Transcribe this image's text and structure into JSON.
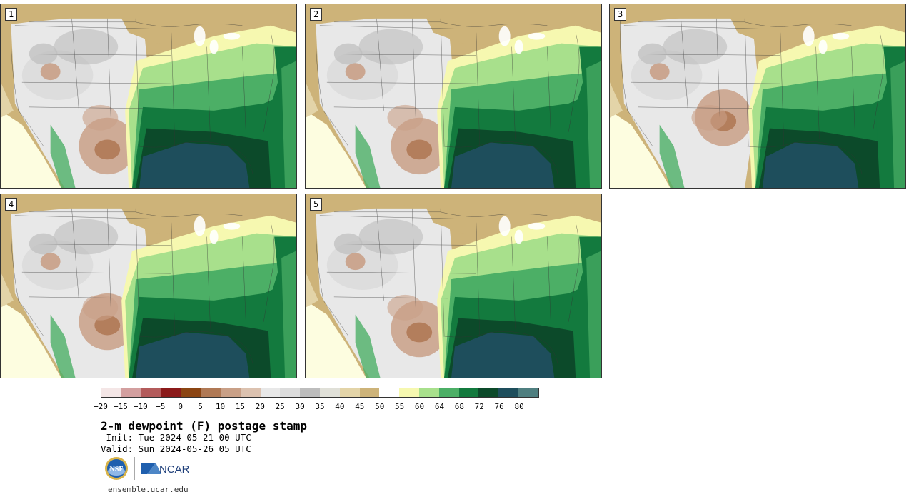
{
  "panels": [
    {
      "id": "panel-1",
      "label": "1"
    },
    {
      "id": "panel-2",
      "label": "2"
    },
    {
      "id": "panel-3",
      "label": "3"
    },
    {
      "id": "panel-4",
      "label": "4"
    },
    {
      "id": "panel-5",
      "label": "5"
    }
  ],
  "legend": {
    "colors": [
      "#f4e6e6",
      "#d39f9f",
      "#b35b5b",
      "#8b1a1a",
      "#8b4513",
      "#b07955",
      "#c9a087",
      "#dcc2b0",
      "#e8e8e8",
      "#dcdcdc",
      "#bdbdbd",
      "#e0e0d8",
      "#e3d4a8",
      "#cdb379",
      "#ffffff",
      "#f6f8b0",
      "#a8e08c",
      "#4caf66",
      "#137a3e",
      "#0c4a2a",
      "#1e4e5c",
      "#4f7f80"
    ],
    "tick_labels": [
      "−20",
      "−15",
      "−10",
      "−5",
      "0",
      "5",
      "10",
      "15",
      "20",
      "25",
      "30",
      "35",
      "40",
      "45",
      "50",
      "55",
      "60",
      "64",
      "68",
      "72",
      "76",
      "80"
    ]
  },
  "title": "2-m dewpoint (F) postage stamp",
  "init": " Init: Tue 2024-05-21 00 UTC",
  "valid": "Valid: Sun 2024-05-26 05 UTC",
  "logos": {
    "nsf_text": "NSF",
    "ncar_text": "NCAR"
  },
  "website": "ensemble.ucar.edu"
}
